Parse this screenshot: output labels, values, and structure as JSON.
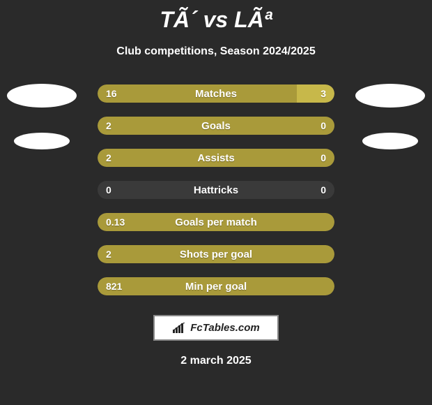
{
  "header": {
    "title": "TÃ´ vs LÃª",
    "subtitle": "Club competitions, Season 2024/2025"
  },
  "colors": {
    "background": "#2a2a2a",
    "bar_left": "#a99a3a",
    "bar_right": "#c7b84a",
    "bar_track": "#3a3a3a",
    "text": "#ffffff",
    "brand_bg": "#ffffff",
    "brand_border": "#888888",
    "brand_text": "#222222"
  },
  "stats": [
    {
      "label": "Matches",
      "left_val": "16",
      "right_val": "3",
      "left_pct": 84,
      "right_pct": 16,
      "show_right": true
    },
    {
      "label": "Goals",
      "left_val": "2",
      "right_val": "0",
      "left_pct": 100,
      "right_pct": 0,
      "show_right": true
    },
    {
      "label": "Assists",
      "left_val": "2",
      "right_val": "0",
      "left_pct": 100,
      "right_pct": 0,
      "show_right": true
    },
    {
      "label": "Hattricks",
      "left_val": "0",
      "right_val": "0",
      "left_pct": 0,
      "right_pct": 0,
      "show_right": true
    },
    {
      "label": "Goals per match",
      "left_val": "0.13",
      "right_val": "",
      "left_pct": 100,
      "right_pct": 0,
      "show_right": false
    },
    {
      "label": "Shots per goal",
      "left_val": "2",
      "right_val": "",
      "left_pct": 100,
      "right_pct": 0,
      "show_right": false
    },
    {
      "label": "Min per goal",
      "left_val": "821",
      "right_val": "",
      "left_pct": 100,
      "right_pct": 0,
      "show_right": false
    }
  ],
  "brand": {
    "text": "FcTables.com"
  },
  "footer": {
    "date": "2 march 2025"
  }
}
